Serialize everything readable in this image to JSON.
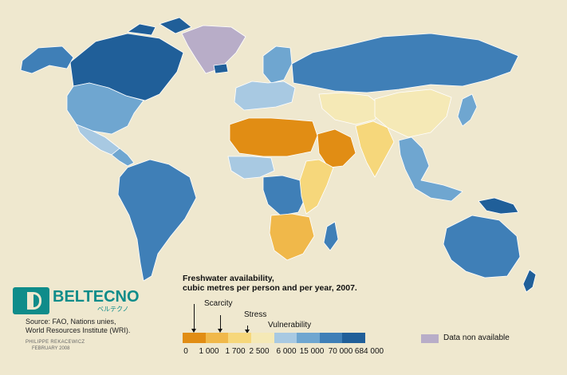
{
  "logo": {
    "name": "BELTECNO",
    "subtitle": "ベルテクノ"
  },
  "source": {
    "line1": "Source: FAO, Nations unies,",
    "line2": "World Resources Institute (WRI)."
  },
  "credit": {
    "author": "PHILIPPE REKACEWICZ",
    "date": "FEBRUARY 2008"
  },
  "legend": {
    "title_line1": "Freshwater availability,",
    "title_line2": "cubic metres per person and per year, 2007.",
    "annotations": {
      "scarcity": "Scarcity",
      "stress": "Stress",
      "vulnerability": "Vulnerability"
    },
    "classes": [
      "#e18d14",
      "#f0b84a",
      "#f6d77b",
      "#f5e9b6",
      "#a8c9e2",
      "#6fa6d0",
      "#3f7fb7",
      "#205f99"
    ],
    "ticks": [
      "0",
      "1 000",
      "1 700",
      "2 500",
      "6 000",
      "15 000",
      "70 000",
      "684 000"
    ],
    "no_data_color": "#b8adc8",
    "no_data_label": "Data non available"
  },
  "map": {
    "ocean": "#efe8cf",
    "regions": [
      {
        "name": "Canada",
        "color": "#205f99"
      },
      {
        "name": "Alaska",
        "color": "#3f7fb7"
      },
      {
        "name": "Greenland",
        "color": "#b8adc8"
      },
      {
        "name": "United States",
        "color": "#6fa6d0"
      },
      {
        "name": "Mexico",
        "color": "#a8c9e2"
      },
      {
        "name": "Central America",
        "color": "#6fa6d0"
      },
      {
        "name": "South America",
        "color": "#3f7fb7"
      },
      {
        "name": "Iceland",
        "color": "#205f99"
      },
      {
        "name": "Northern Europe",
        "color": "#6fa6d0"
      },
      {
        "name": "Western Europe",
        "color": "#a8c9e2"
      },
      {
        "name": "Russia",
        "color": "#3f7fb7"
      },
      {
        "name": "North Africa",
        "color": "#e18d14"
      },
      {
        "name": "Arabian Peninsula",
        "color": "#e18d14"
      },
      {
        "name": "Central Asia",
        "color": "#f5e9b6"
      },
      {
        "name": "China",
        "color": "#f5e9b6"
      },
      {
        "name": "India",
        "color": "#f6d77b"
      },
      {
        "name": "Southeast Asia",
        "color": "#6fa6d0"
      },
      {
        "name": "West Africa",
        "color": "#a8c9e2"
      },
      {
        "name": "Central Africa",
        "color": "#3f7fb7"
      },
      {
        "name": "East Africa",
        "color": "#f6d77b"
      },
      {
        "name": "Southern Africa",
        "color": "#f0b84a"
      },
      {
        "name": "Madagascar",
        "color": "#3f7fb7"
      },
      {
        "name": "Australia",
        "color": "#3f7fb7"
      },
      {
        "name": "New Guinea",
        "color": "#205f99"
      },
      {
        "name": "New Zealand",
        "color": "#205f99"
      },
      {
        "name": "Japan",
        "color": "#6fa6d0"
      }
    ]
  }
}
